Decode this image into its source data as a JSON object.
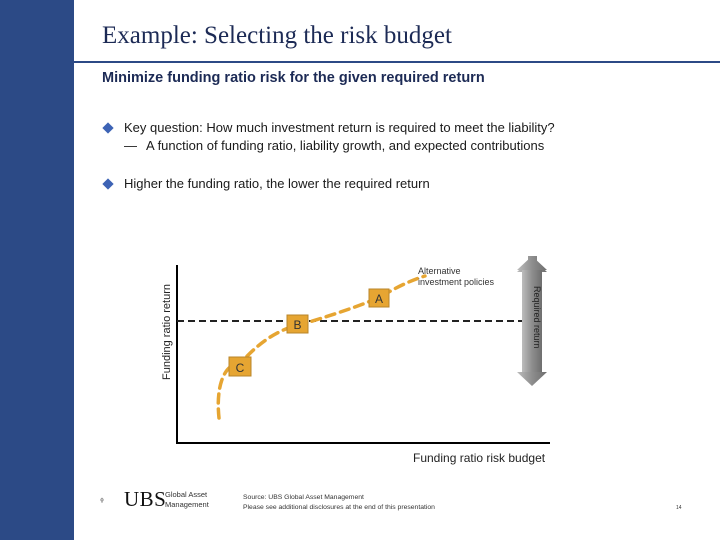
{
  "slide": {
    "title": "Example: Selecting the risk budget",
    "subtitle": "Minimize funding ratio risk for the given required return",
    "bullets": [
      {
        "text": "Key question: How much investment return is required to meet the liability?",
        "sub": "A function of funding ratio, liability growth, and expected contributions"
      },
      {
        "text": "Higher the funding ratio, the lower the required return"
      }
    ]
  },
  "diagram": {
    "y_axis_label": "Funding ratio return",
    "x_axis_label": "Funding ratio risk budget",
    "points": [
      {
        "label": "A"
      },
      {
        "label": "B"
      },
      {
        "label": "C"
      }
    ],
    "curve_label": "Alternative investment policies",
    "curve_label_lines": [
      "Alternative",
      "investment policies"
    ],
    "arrow_label": "Required return",
    "colors": {
      "curve": "#e6a532",
      "point_fill": "#e6a532",
      "point_stroke": "#b8852a",
      "arrow": "#8e8e8e",
      "axes": "#000000"
    }
  },
  "footer": {
    "brand": "UBS",
    "brand_sub": [
      "Global Asset",
      "Management"
    ],
    "logo_icon": "three-keys-icon",
    "source_lines": [
      "Source: UBS Global Asset Management",
      "Please see additional disclosures at the end of this presentation"
    ],
    "page_number": "14"
  }
}
